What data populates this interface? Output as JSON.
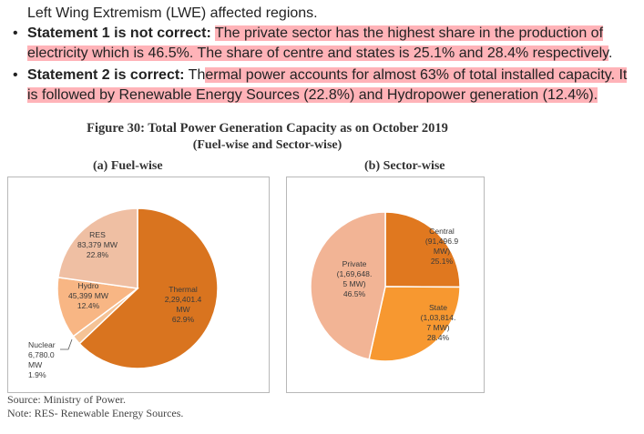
{
  "intro": {
    "text": "Left Wing Extremism (LWE) affected regions."
  },
  "statements": [
    {
      "bullet": "•",
      "label": "Statement 1 is not correct:",
      "highlighted_text": "The private sector has the highest share in the production of electricity which is 46.5%. The share of centre and states is 25.1% and 28.4% respectively",
      "trailing_text": "."
    },
    {
      "bullet": "•",
      "label": "Statement 2 is correct:",
      "plain_prefix": "Th",
      "highlighted_text": "ermal power accounts for almost 63% of total installed capacity. It is followed by Renewable Energy Sources (22.8%) and Hydropower generation (12.4%)."
    }
  ],
  "figure": {
    "title": "Figure 30: Total Power Generation Capacity as on October 2019",
    "subtitle": "(Fuel-wise and Sector-wise)",
    "panel_a_title": "(a) Fuel-wise",
    "panel_b_title": "(b) Sector-wise",
    "source": "Source: Ministry of Power.",
    "note": "Note: RES- Renewable Energy Sources."
  },
  "chart_data": [
    {
      "type": "pie",
      "title": "(a) Fuel-wise",
      "slices": [
        {
          "name": "Thermal",
          "value": 62.9,
          "lines": [
            "Thermal",
            "2,29,401.4",
            "MW",
            "62.9%"
          ],
          "color": "#d9741f"
        },
        {
          "name": "Nuclear",
          "value": 1.9,
          "lines": [
            "Nuclear",
            "6,780.0",
            "MW",
            "1.9%"
          ],
          "color": "#f5c396"
        },
        {
          "name": "Hydro",
          "value": 12.4,
          "lines": [
            "Hydro",
            "45,399 MW",
            "12.4%"
          ],
          "color": "#f8b684"
        },
        {
          "name": "RES",
          "value": 22.8,
          "lines": [
            "RES",
            "83,379 MW",
            "22.8%"
          ],
          "color": "#efbfa3"
        }
      ]
    },
    {
      "type": "pie",
      "title": "(b) Sector-wise",
      "slices": [
        {
          "name": "Central",
          "value": 25.1,
          "lines": [
            "Central",
            "(91,496.9",
            "MW)",
            "25.1%"
          ],
          "color": "#e0781f"
        },
        {
          "name": "State",
          "value": 28.4,
          "lines": [
            "State",
            "(1,03,814.",
            "7 MW)",
            "28.4%"
          ],
          "color": "#f79830"
        },
        {
          "name": "Private",
          "value": 46.5,
          "lines": [
            "Private",
            "(1,69,648.",
            "5 MW)",
            "46.5%"
          ],
          "color": "#f2b495"
        }
      ]
    }
  ]
}
